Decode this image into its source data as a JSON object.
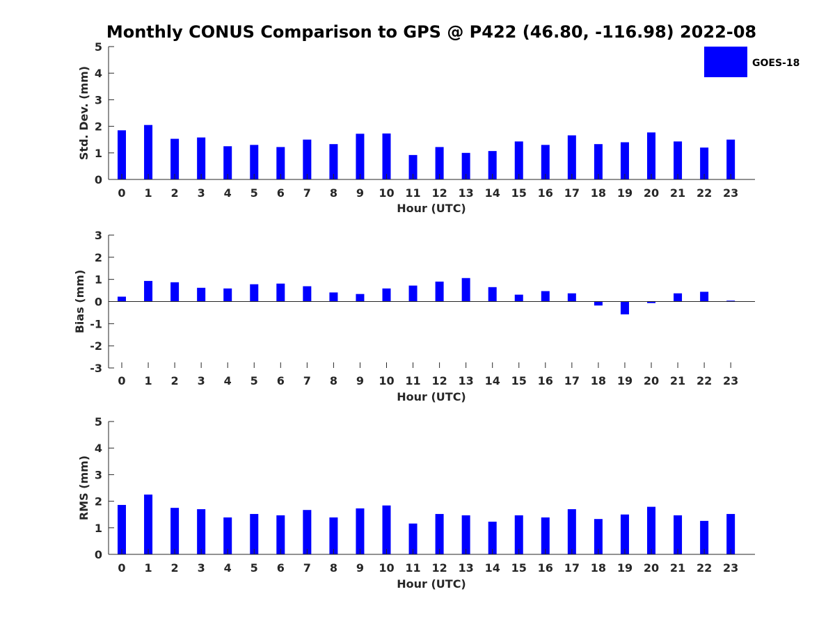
{
  "title": "Monthly CONUS Comparison to GPS @ P422 (46.80, -116.98) 2022-08",
  "legend": {
    "label": "GOES-18",
    "color": "#0000ff",
    "placement": "top-right"
  },
  "chart_data": [
    {
      "type": "bar",
      "xlabel": "Hour (UTC)",
      "ylabel": "Std. Dev. (mm)",
      "ylim": [
        0,
        5
      ],
      "yticks": [
        "0",
        "1",
        "2",
        "3",
        "4",
        "5"
      ],
      "categories": [
        "0",
        "1",
        "2",
        "3",
        "4",
        "5",
        "6",
        "7",
        "8",
        "9",
        "10",
        "11",
        "12",
        "13",
        "14",
        "15",
        "16",
        "17",
        "18",
        "19",
        "20",
        "21",
        "22",
        "23"
      ],
      "series": [
        {
          "name": "GOES-18",
          "values": [
            1.85,
            2.05,
            1.53,
            1.58,
            1.25,
            1.3,
            1.22,
            1.5,
            1.33,
            1.72,
            1.73,
            0.92,
            1.22,
            1.0,
            1.07,
            1.43,
            1.3,
            1.66,
            1.33,
            1.4,
            1.77,
            1.43,
            1.2,
            1.5
          ]
        }
      ],
      "grid": false
    },
    {
      "type": "bar",
      "xlabel": "Hour (UTC)",
      "ylabel": "Bias (mm)",
      "ylim": [
        -3,
        3
      ],
      "yticks": [
        "-3",
        "-2",
        "-1",
        "0",
        "1",
        "2",
        "3"
      ],
      "categories": [
        "0",
        "1",
        "2",
        "3",
        "4",
        "5",
        "6",
        "7",
        "8",
        "9",
        "10",
        "11",
        "12",
        "13",
        "14",
        "15",
        "16",
        "17",
        "18",
        "19",
        "20",
        "21",
        "22",
        "23"
      ],
      "series": [
        {
          "name": "GOES-18",
          "values": [
            0.22,
            0.93,
            0.87,
            0.62,
            0.59,
            0.78,
            0.81,
            0.69,
            0.41,
            0.34,
            0.59,
            0.72,
            0.9,
            1.06,
            0.65,
            0.31,
            0.47,
            0.37,
            -0.18,
            -0.58,
            -0.07,
            0.37,
            0.44,
            0.04
          ]
        }
      ],
      "grid": false
    },
    {
      "type": "bar",
      "xlabel": "Hour (UTC)",
      "ylabel": "RMS (mm)",
      "ylim": [
        0,
        5
      ],
      "yticks": [
        "0",
        "1",
        "2",
        "3",
        "4",
        "5"
      ],
      "categories": [
        "0",
        "1",
        "2",
        "3",
        "4",
        "5",
        "6",
        "7",
        "8",
        "9",
        "10",
        "11",
        "12",
        "13",
        "14",
        "15",
        "16",
        "17",
        "18",
        "19",
        "20",
        "21",
        "22",
        "23"
      ],
      "series": [
        {
          "name": "GOES-18",
          "values": [
            1.86,
            2.25,
            1.75,
            1.7,
            1.39,
            1.52,
            1.47,
            1.67,
            1.39,
            1.73,
            1.84,
            1.16,
            1.52,
            1.47,
            1.23,
            1.47,
            1.39,
            1.7,
            1.33,
            1.5,
            1.79,
            1.47,
            1.26,
            1.52
          ]
        }
      ],
      "grid": false
    }
  ]
}
